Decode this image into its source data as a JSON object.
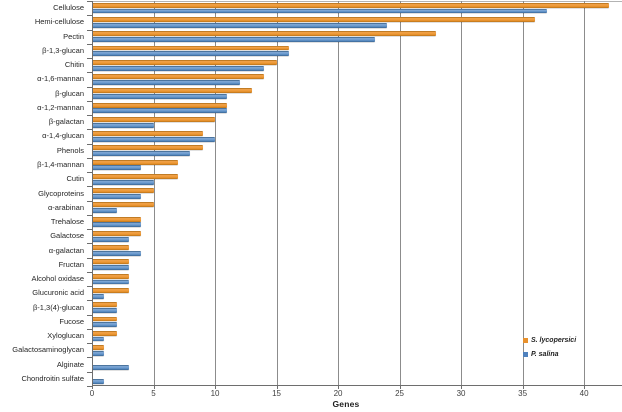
{
  "chart_data": {
    "type": "bar",
    "orientation": "horizontal",
    "title": "",
    "xlabel": "Genes",
    "ylabel": "",
    "xlim": [
      0,
      43
    ],
    "xticks": [
      0,
      5,
      10,
      15,
      20,
      25,
      30,
      35,
      40
    ],
    "grid": true,
    "legend_position": "inside-bottom-right",
    "categories": [
      "Cellulose",
      "Hemi-cellulose",
      "Pectin",
      "β-1,3-glucan",
      "Chitin",
      "α-1,6-mannan",
      "β-glucan",
      "α-1,2-mannan",
      "β-galactan",
      "α-1,4-glucan",
      "Phenols",
      "β-1,4-mannan",
      "Cutin",
      "Glycoproteins",
      "α-arabinan",
      "Trehalose",
      "Galactose",
      "α-galactan",
      "Fructan",
      "Alcohol oxidase",
      "Glucuronic acid",
      "β-1,3(4)-glucan",
      "Fucose",
      "Xyloglucan",
      "Galactosaminoglycan",
      "Alginate",
      "Chondroitin sulfate"
    ],
    "series": [
      {
        "name": "S. lycopersici",
        "color": "#E8912D",
        "values": [
          42,
          36,
          28,
          16,
          15,
          14,
          13,
          11,
          10,
          9,
          9,
          7,
          7,
          5,
          5,
          4,
          4,
          3,
          3,
          3,
          3,
          2,
          2,
          2,
          1,
          0,
          0
        ]
      },
      {
        "name": "P. salina",
        "color": "#4F81BD",
        "values": [
          37,
          24,
          23,
          16,
          14,
          12,
          11,
          11,
          5,
          10,
          8,
          4,
          5,
          4,
          2,
          4,
          3,
          4,
          3,
          3,
          1,
          2,
          2,
          1,
          1,
          3,
          1
        ]
      }
    ],
    "axis_colors": {
      "gridline": "#8c8c8c",
      "axis": "#6e6e6e",
      "tick_label": "#3f3f3f"
    }
  }
}
